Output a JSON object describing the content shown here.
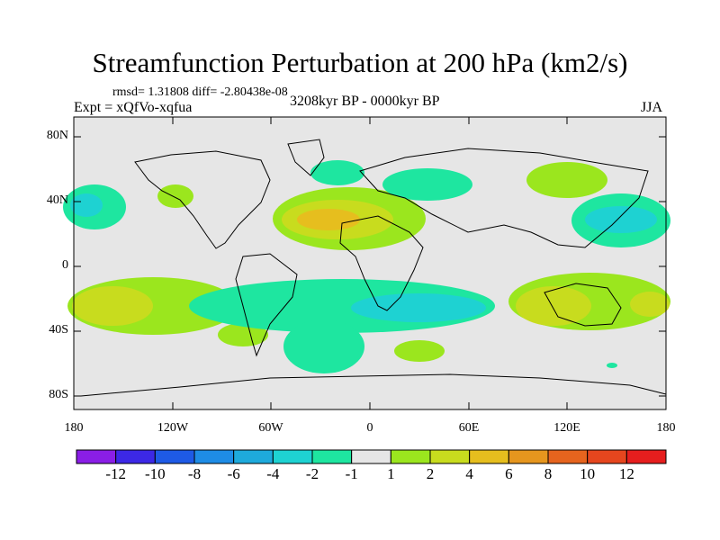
{
  "title": "Streamfunction Perturbation at 200 hPa (km2/s)",
  "stats": "rmsd= 1.31808 diff= -2.80438e-08",
  "experiment": "Expt = xQfVo-xqfua",
  "period": "3208kyr BP - 0000kyr BP",
  "season": "JJA",
  "lat_ticks": [
    "80N",
    "40N",
    "0",
    "40S",
    "80S"
  ],
  "lon_ticks": [
    "180",
    "120W",
    "60W",
    "0",
    "60E",
    "120E",
    "180"
  ],
  "colorbar": {
    "labels": [
      "-12",
      "-10",
      "-8",
      "-6",
      "-4",
      "-2",
      "-1",
      "1",
      "2",
      "4",
      "6",
      "8",
      "10",
      "12"
    ],
    "colors": [
      "#8a1ee6",
      "#3c28e6",
      "#1e5ae6",
      "#1e8ce6",
      "#1eaadc",
      "#1ed2d2",
      "#1ee6a0",
      "#e6e6e6",
      "#9be61e",
      "#c8dc1e",
      "#e6be1e",
      "#e6961e",
      "#e6641e",
      "#e6461e",
      "#e61e1e"
    ]
  },
  "colors": {
    "background": "#e6e6e6",
    "coastline": "#000000"
  }
}
